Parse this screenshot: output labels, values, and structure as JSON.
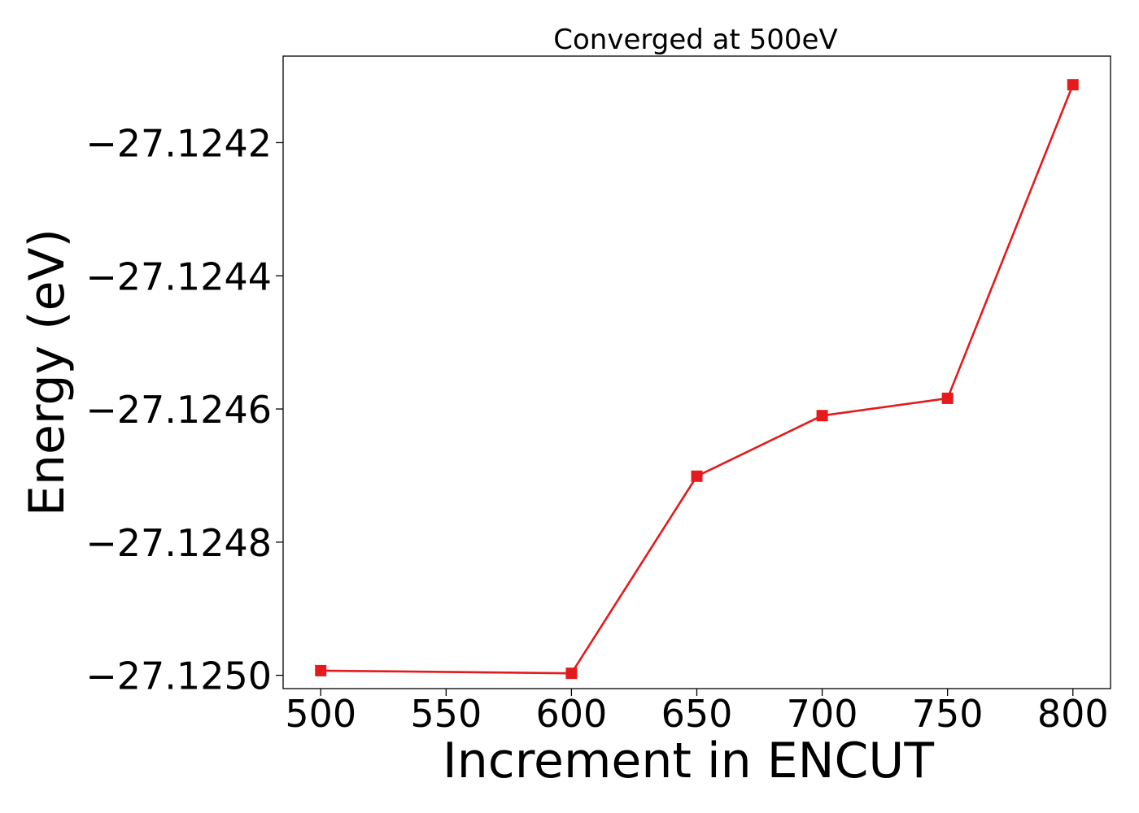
{
  "chart_data": {
    "type": "line",
    "title": "Converged at 500eV",
    "xlabel": "Increment in ENCUT",
    "ylabel": "Energy (eV)",
    "x": [
      500,
      600,
      650,
      700,
      750,
      800
    ],
    "series": [
      {
        "values": [
          -27.124993,
          -27.124997,
          -27.124701,
          -27.12461,
          -27.124584,
          -27.124113
        ],
        "color": "#e41a1c",
        "marker": "square"
      }
    ],
    "xticks": [
      500,
      550,
      600,
      650,
      700,
      750,
      800
    ],
    "xtick_labels": [
      "500",
      "550",
      "600",
      "650",
      "700",
      "750",
      "800"
    ],
    "yticks": [
      -27.125,
      -27.1248,
      -27.1246,
      -27.1244,
      -27.1242
    ],
    "ytick_labels": [
      "−27.1250",
      "−27.1248",
      "−27.1246",
      "−27.1244",
      "−27.1242"
    ],
    "xlim": [
      485,
      815
    ],
    "ylim": [
      -27.12502,
      -27.12407
    ],
    "grid": false,
    "legend": "none"
  }
}
